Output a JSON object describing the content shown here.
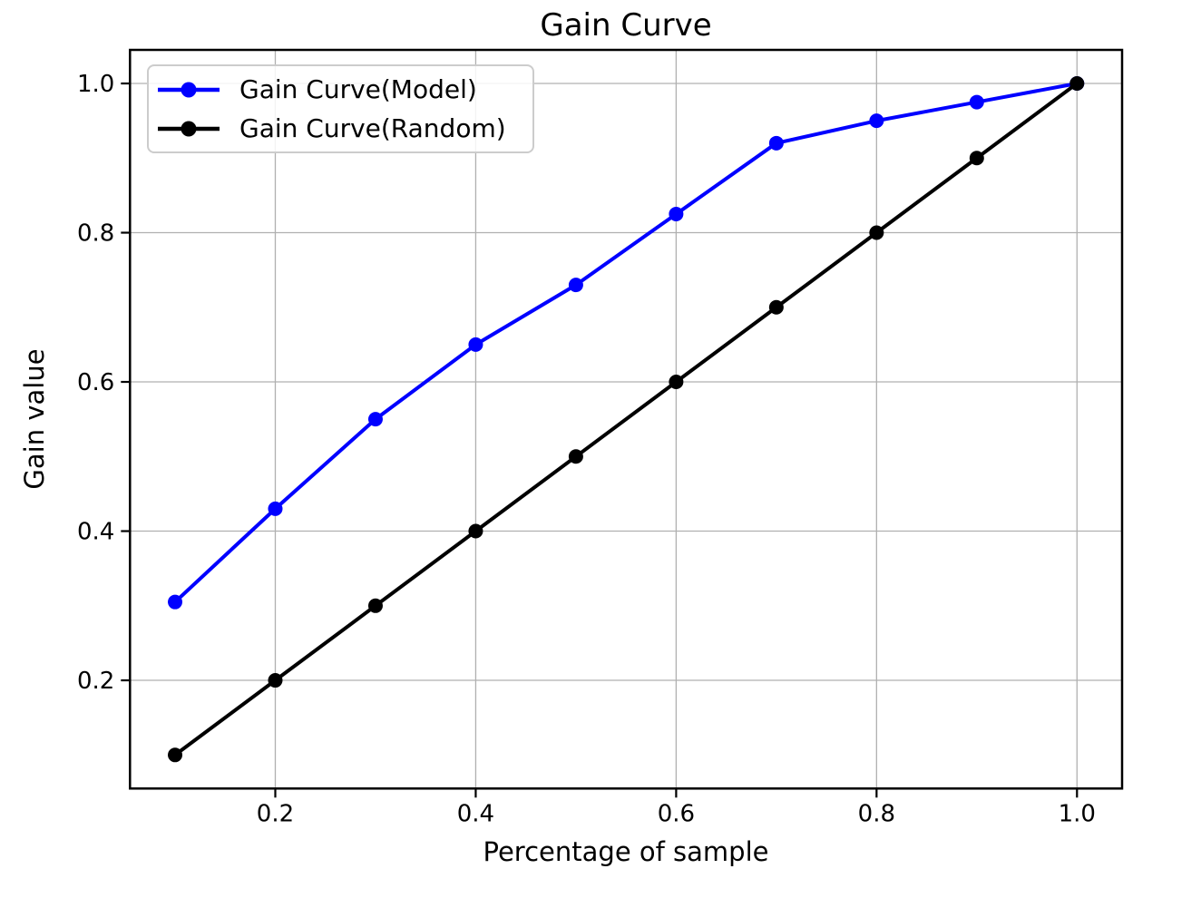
{
  "chart_data": {
    "type": "line",
    "title": "Gain Curve",
    "xlabel": "Percentage of sample",
    "ylabel": "Gain value",
    "x": [
      0.1,
      0.2,
      0.3,
      0.4,
      0.5,
      0.6,
      0.7,
      0.8,
      0.9,
      1.0
    ],
    "series": [
      {
        "name": "Gain Curve(Model)",
        "color": "#0000ff",
        "marker": "o",
        "values": [
          0.305,
          0.43,
          0.55,
          0.65,
          0.73,
          0.825,
          0.92,
          0.95,
          0.975,
          1.0
        ]
      },
      {
        "name": "Gain Curve(Random)",
        "color": "#000000",
        "marker": "o",
        "values": [
          0.1,
          0.2,
          0.3,
          0.4,
          0.5,
          0.6,
          0.7,
          0.8,
          0.9,
          1.0
        ]
      }
    ],
    "xlim": [
      0.055,
      1.045
    ],
    "ylim": [
      0.055,
      1.045
    ],
    "xticks": [
      0.2,
      0.4,
      0.6,
      0.8,
      1.0
    ],
    "yticks": [
      0.2,
      0.4,
      0.6,
      0.8,
      1.0
    ],
    "xtick_labels": [
      "0.2",
      "0.4",
      "0.6",
      "0.8",
      "1.0"
    ],
    "ytick_labels": [
      "0.2",
      "0.4",
      "0.6",
      "0.8",
      "1.0"
    ],
    "grid": true,
    "grid_color": "#b0b0b0",
    "spine_color": "#000000",
    "background": "#ffffff",
    "legend_position": "upper left"
  }
}
